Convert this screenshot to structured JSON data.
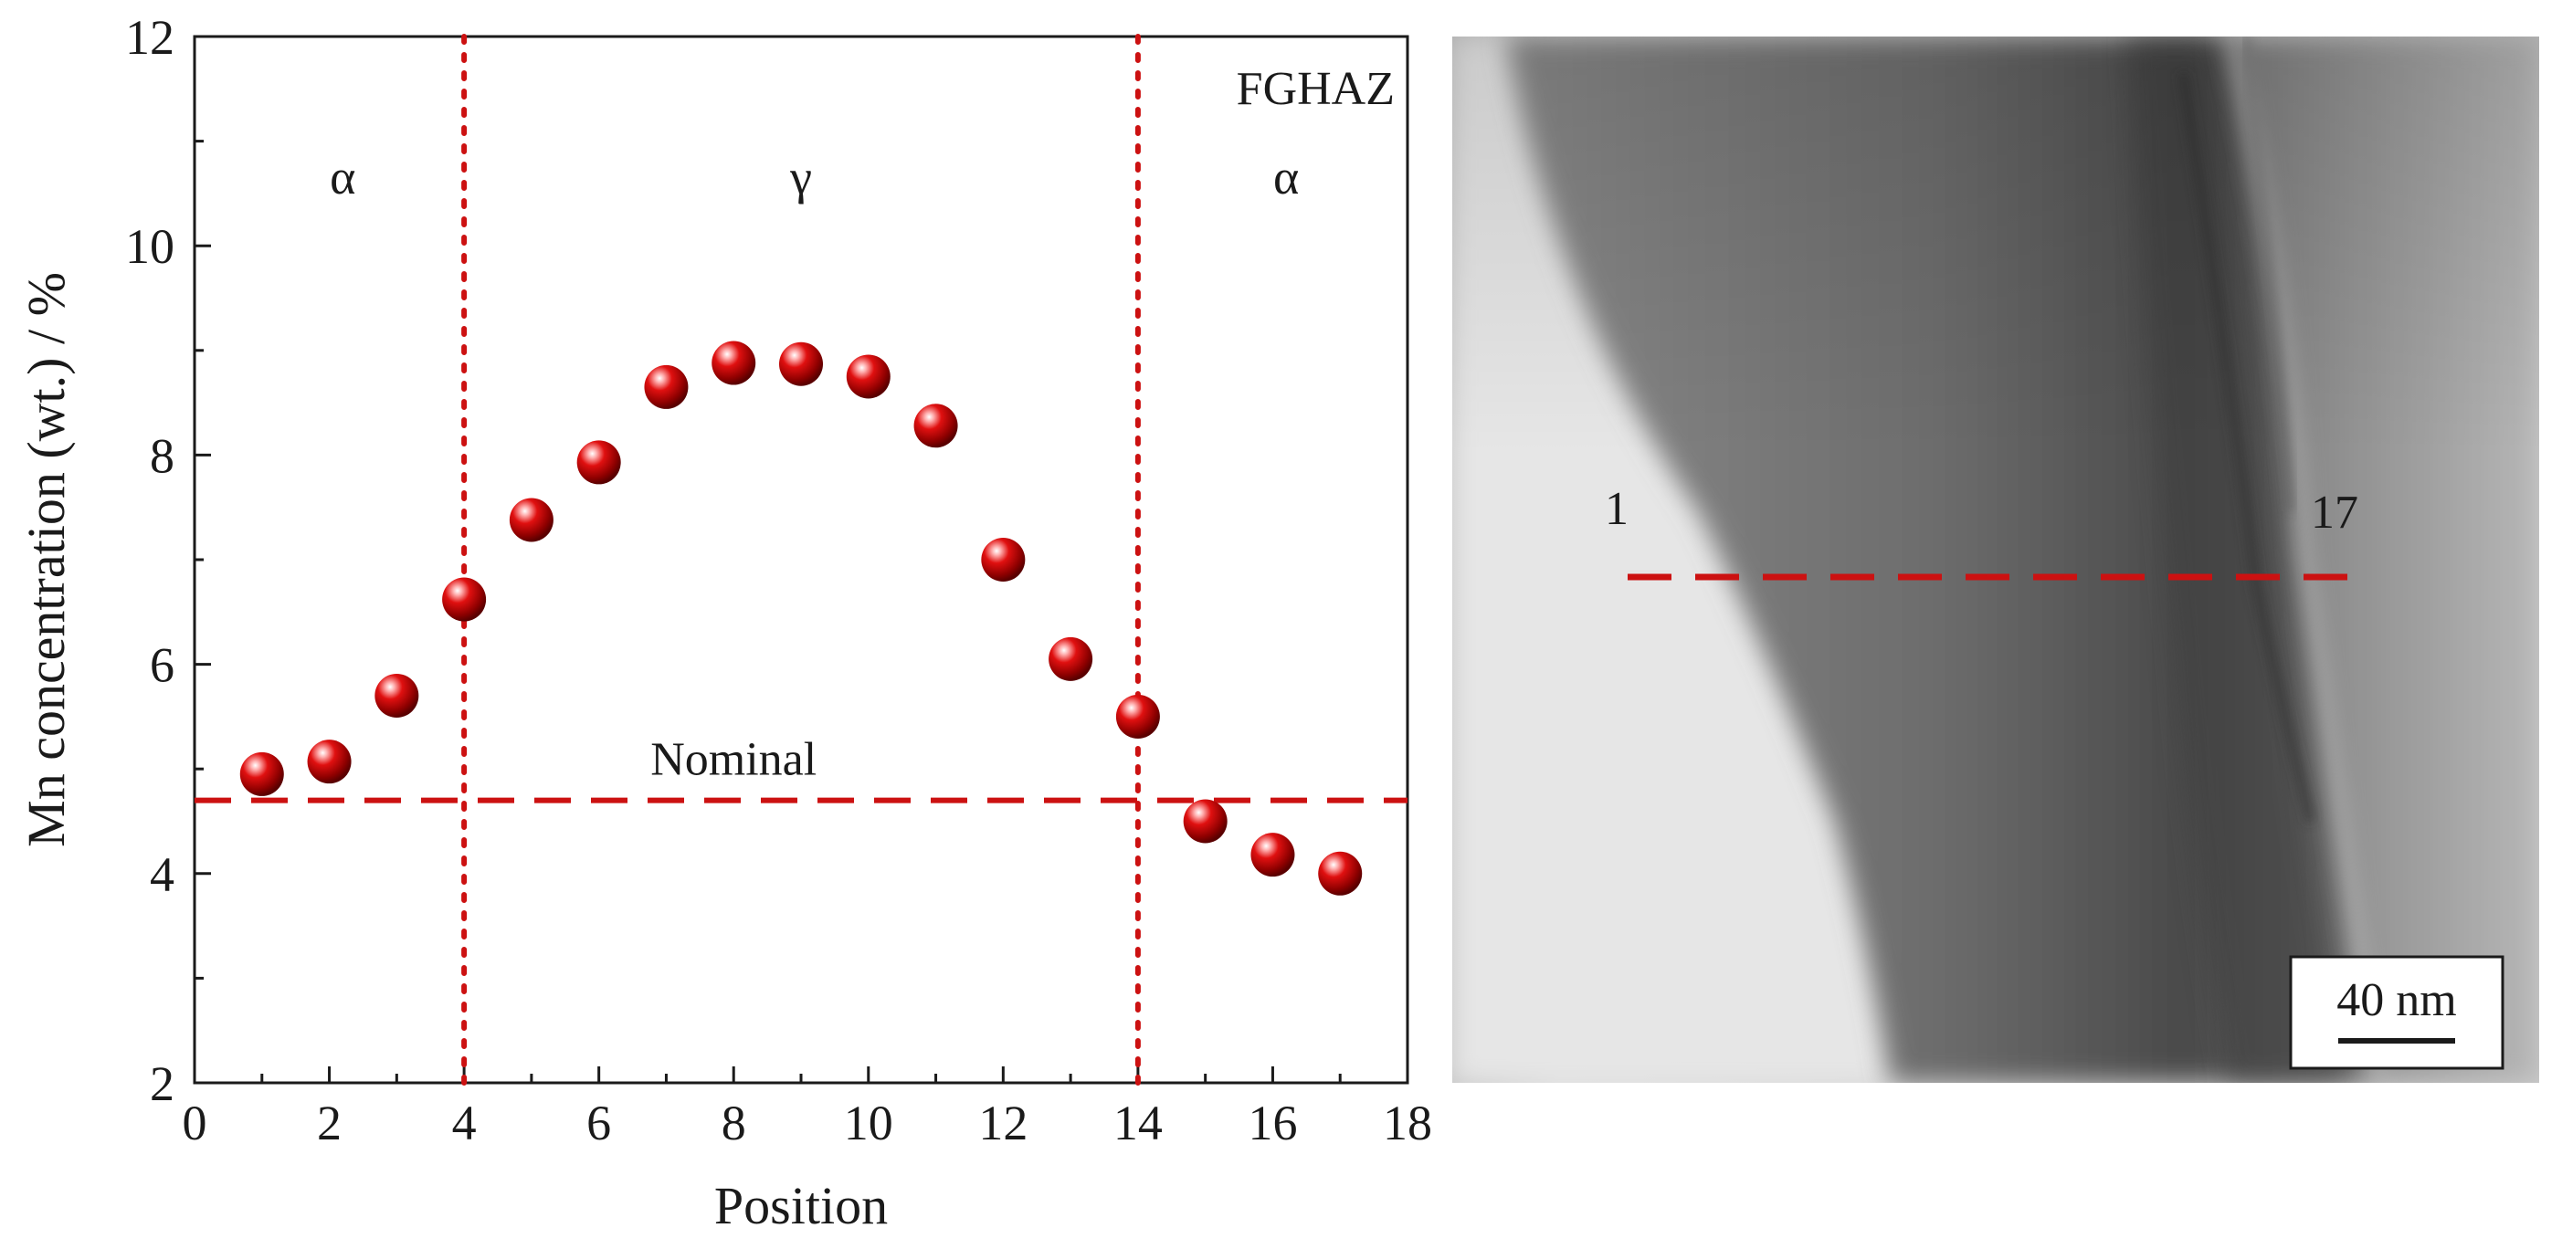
{
  "chart_data": {
    "type": "scatter",
    "title": "",
    "xlabel": "Position",
    "ylabel": "Mn concentration (wt.) / %",
    "xlim": [
      0,
      18
    ],
    "ylim": [
      2,
      12
    ],
    "x_ticks": [
      0,
      2,
      4,
      6,
      8,
      10,
      12,
      14,
      16,
      18
    ],
    "y_ticks": [
      2,
      4,
      6,
      8,
      10,
      12
    ],
    "grid": false,
    "legend": "none",
    "marker_color": "#c40000",
    "line_color": "#cc1111",
    "series": [
      {
        "x": [
          1,
          2,
          3,
          4,
          5,
          6,
          7,
          8,
          9,
          10,
          11,
          12,
          13,
          14,
          15,
          16,
          17
        ],
        "y": [
          4.95,
          5.07,
          5.7,
          6.62,
          7.38,
          7.93,
          8.65,
          8.88,
          8.87,
          8.75,
          8.28,
          7.0,
          6.05,
          5.5,
          4.5,
          4.18,
          4.0
        ]
      }
    ],
    "reference_lines": [
      {
        "orientation": "horizontal",
        "value": 4.7,
        "style": "dashed",
        "label": "Nominal",
        "label_x": 8
      },
      {
        "orientation": "vertical",
        "value": 4,
        "style": "dotted"
      },
      {
        "orientation": "vertical",
        "value": 14,
        "style": "dotted"
      }
    ],
    "regions": [
      {
        "label": "α",
        "x": 2.2
      },
      {
        "label": "γ",
        "x": 9
      },
      {
        "label": "α",
        "x": 16.2
      }
    ],
    "corner_label": "FGHAZ"
  },
  "micrograph": {
    "line_start_label": "1",
    "line_end_label": "17",
    "scale_bar_label": "40 nm"
  }
}
